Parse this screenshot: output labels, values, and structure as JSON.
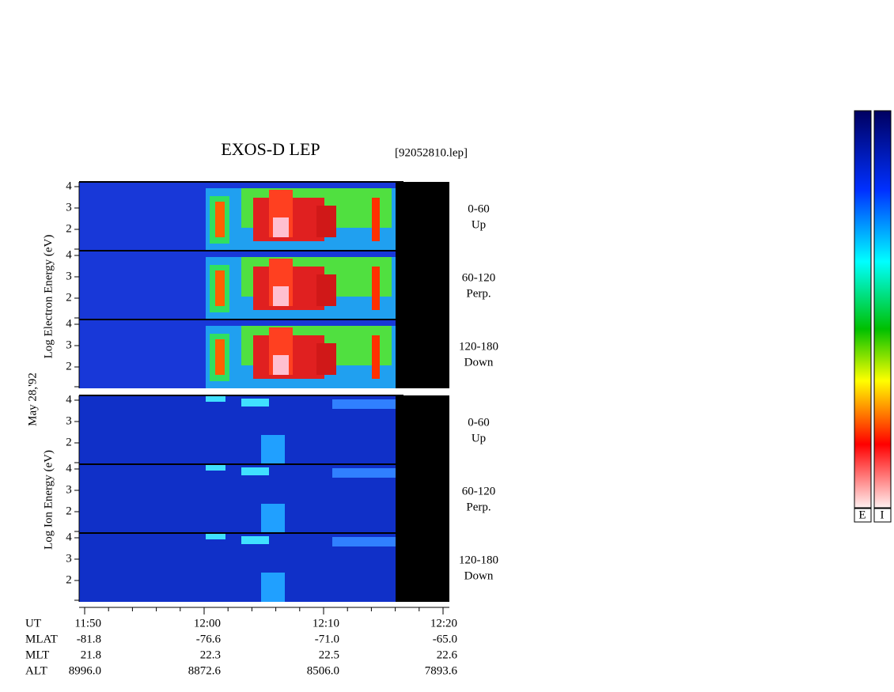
{
  "title": "EXOS-D LEP",
  "file": "[92052810.lep]",
  "date": "May 28,'92",
  "electron_label": "Log  Electron  Energy (eV)",
  "ion_label": "Log  Ion  Energy (eV)",
  "energy_ticks": [
    "4",
    "3",
    "2"
  ],
  "panels": [
    {
      "angle": "0-60",
      "direction": "Up"
    },
    {
      "angle": "60-120",
      "direction": "Perp."
    },
    {
      "angle": "120-180",
      "direction": "Down"
    },
    {
      "angle": "0-60",
      "direction": "Up"
    },
    {
      "angle": "60-120",
      "direction": "Perp."
    },
    {
      "angle": "120-180",
      "direction": "Down"
    }
  ],
  "ephemeris": [
    {
      "label": "UT",
      "values": [
        "11:50",
        "12:00",
        "12:10",
        "12:20"
      ]
    },
    {
      "label": "MLAT",
      "values": [
        "-81.8",
        "-76.6",
        "-71.0",
        "-65.0"
      ]
    },
    {
      "label": "MLT",
      "values": [
        "21.8",
        "22.3",
        "22.5",
        "22.6"
      ]
    },
    {
      "label": "ALT",
      "values": [
        "8996.0",
        "8872.6",
        "8506.0",
        "7893.6"
      ]
    }
  ],
  "colorbar_labels": [
    "E",
    "I"
  ]
}
